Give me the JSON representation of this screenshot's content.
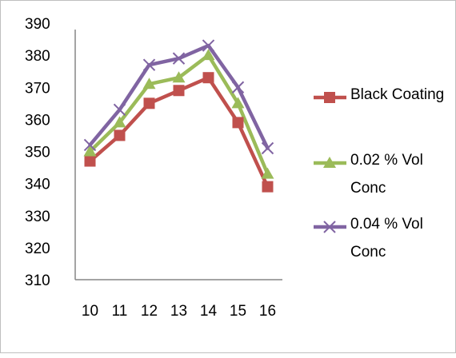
{
  "chart_data": {
    "type": "line",
    "title": "",
    "xlabel": "",
    "ylabel": "",
    "categories": [
      "10",
      "11",
      "12",
      "13",
      "14",
      "15",
      "16"
    ],
    "ylim": [
      310,
      390
    ],
    "yticks": [
      "310",
      "320",
      "330",
      "340",
      "350",
      "360",
      "370",
      "380",
      "390"
    ],
    "grid": false,
    "legend_position": "right",
    "series": [
      {
        "name": "Black Coating",
        "legend_lines": [
          "Black Coating"
        ],
        "marker": "square",
        "color": "#c0504d",
        "values": [
          347,
          355,
          365,
          369,
          373,
          359,
          339
        ]
      },
      {
        "name": "0.02 % Vol Conc",
        "legend_lines": [
          "0.02 % Vol",
          "Conc"
        ],
        "marker": "triangle",
        "color": "#9bbb59",
        "values": [
          350,
          359,
          371,
          373,
          380,
          365,
          343
        ]
      },
      {
        "name": "0.04 % Vol Conc",
        "legend_lines": [
          "0.04 % Vol",
          "Conc"
        ],
        "marker": "x",
        "color": "#8064a2",
        "values": [
          352,
          363,
          377,
          379,
          383,
          370,
          351
        ]
      }
    ]
  }
}
